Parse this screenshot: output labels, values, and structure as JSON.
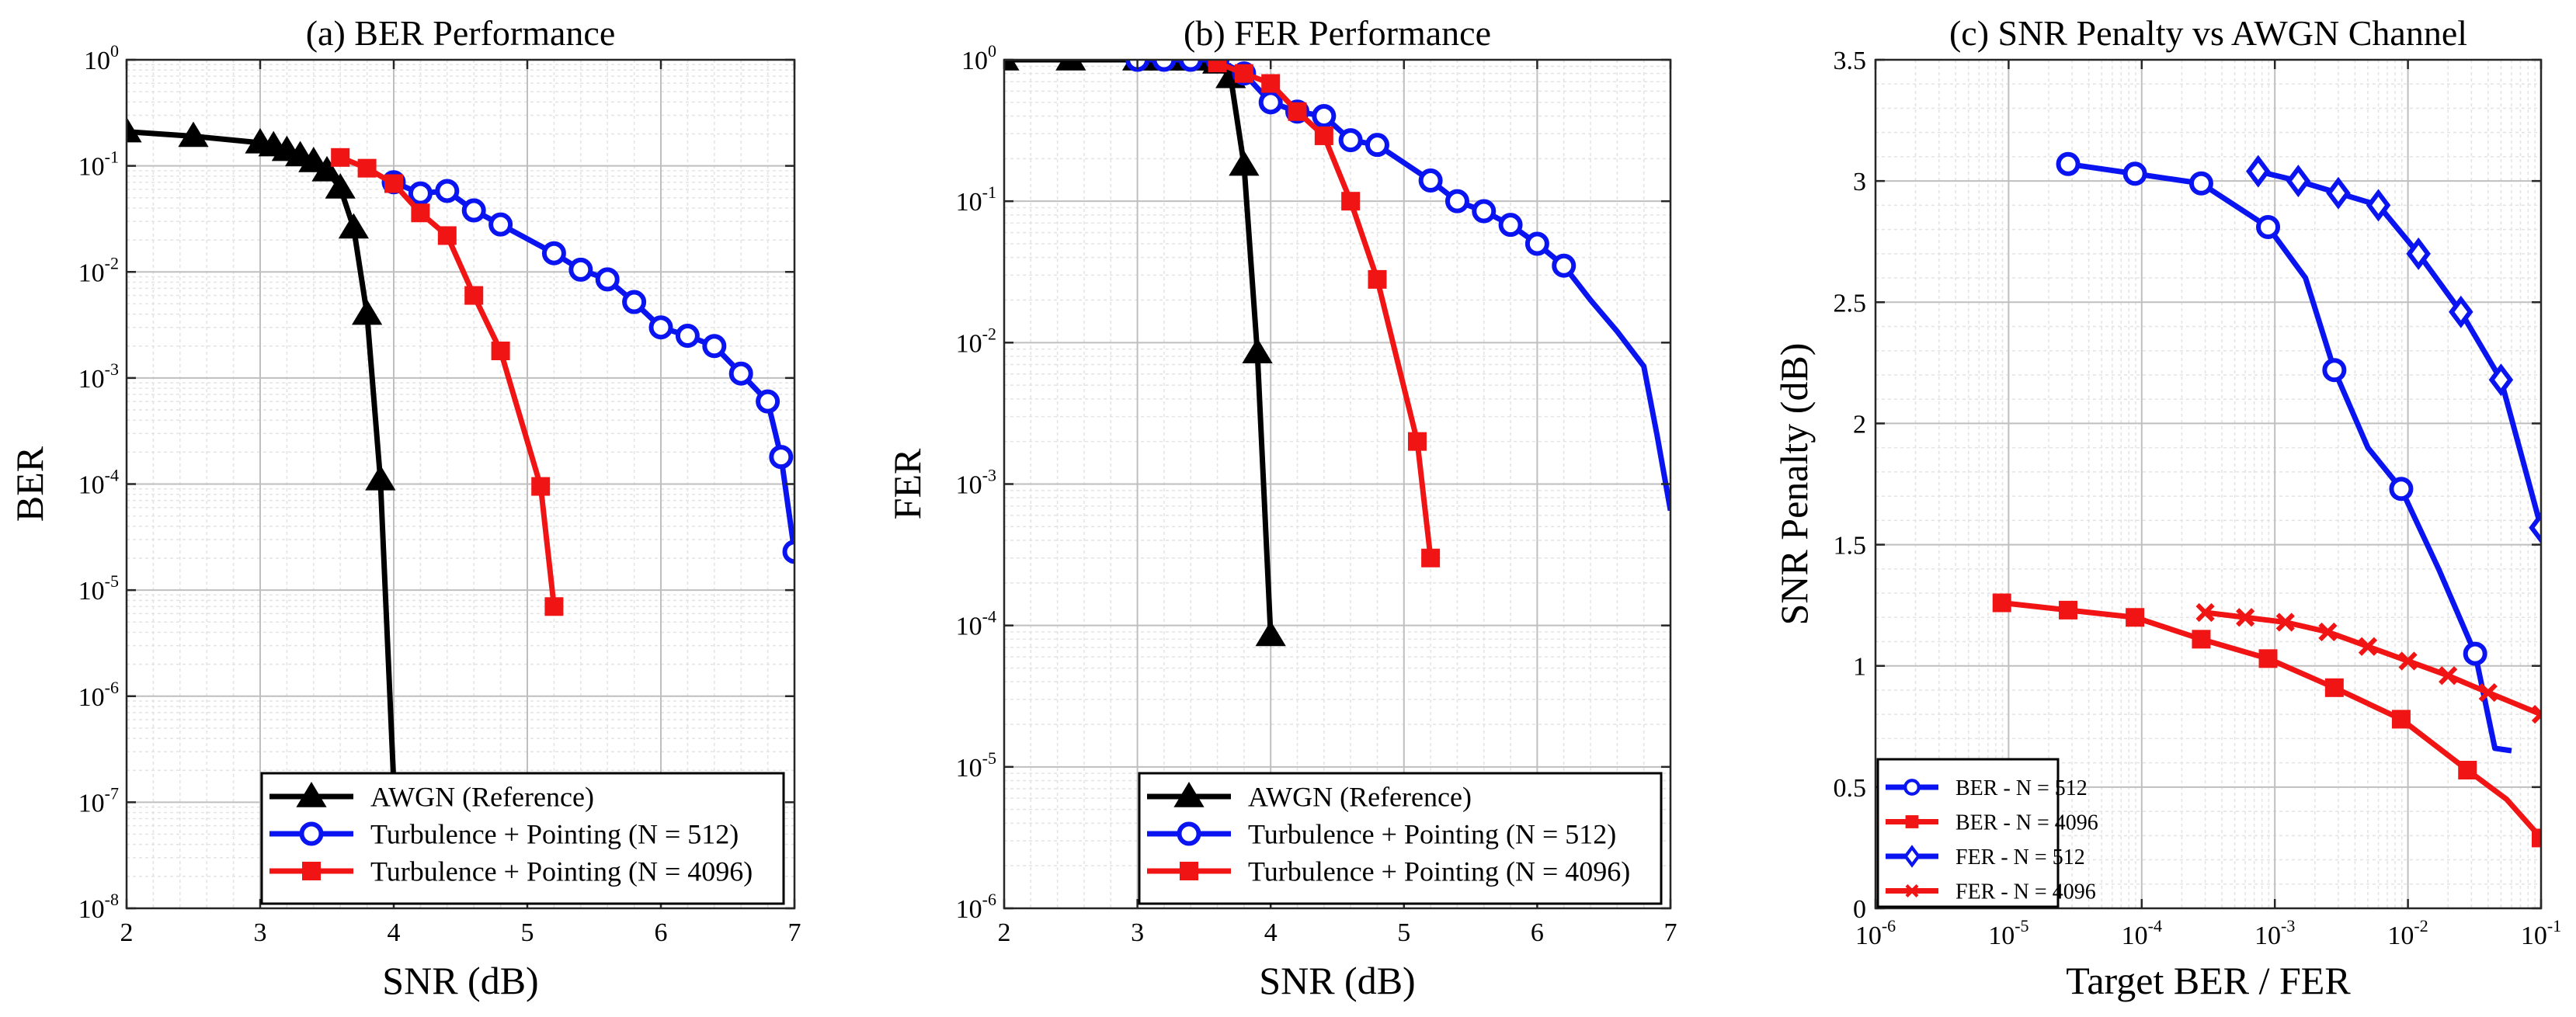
{
  "figure": {
    "colors": {
      "black": "#000000",
      "blue": "#0a14f0",
      "red": "#f01414",
      "grid_major": "#bfbfbf",
      "grid_minor": "#e3e3e3"
    }
  },
  "chart_data": [
    {
      "type": "line",
      "title": "(a) BER Performance",
      "xlabel": "SNR (dB)",
      "ylabel": "BER",
      "xscale": "linear",
      "yscale": "log",
      "xlim": [
        2,
        7
      ],
      "ylim": [
        1e-08,
        1
      ],
      "xticks": [
        2,
        3,
        4,
        5,
        6,
        7
      ],
      "xtick_labels": [
        "2",
        "3",
        "4",
        "5",
        "6",
        "7"
      ],
      "yticks": [
        {
          "base": "10",
          "exp": "-8"
        },
        {
          "base": "10",
          "exp": "-7"
        },
        {
          "base": "10",
          "exp": "-6"
        },
        {
          "base": "10",
          "exp": "-5"
        },
        {
          "base": "10",
          "exp": "-4"
        },
        {
          "base": "10",
          "exp": "-3"
        },
        {
          "base": "10",
          "exp": "-2"
        },
        {
          "base": "10",
          "exp": "-1"
        },
        {
          "base": "10",
          "exp": "0"
        }
      ],
      "legend_position": "bottom-right",
      "series": [
        {
          "name": "AWGN (Reference)",
          "color": "#000000",
          "marker": "triangle",
          "x": [
            2.0,
            2.5,
            3.0,
            3.1,
            3.2,
            3.3,
            3.4,
            3.5,
            3.6,
            3.7,
            3.8,
            3.9,
            4.0
          ],
          "y": [
            0.21,
            0.19,
            0.165,
            0.155,
            0.14,
            0.125,
            0.11,
            0.09,
            0.062,
            0.026,
            0.004,
            0.00011,
            1.5e-07
          ],
          "marker_count": 12
        },
        {
          "name": "Turbulence + Pointing (N = 512)",
          "color": "#0a14f0",
          "marker": "circle",
          "x": [
            4.0,
            4.2,
            4.4,
            4.6,
            4.8,
            5.2,
            5.4,
            5.6,
            5.8,
            6.0,
            6.2,
            6.4,
            6.6,
            6.8,
            6.9,
            7.0
          ],
          "y": [
            0.07,
            0.055,
            0.058,
            0.038,
            0.028,
            0.015,
            0.0105,
            0.0085,
            0.0052,
            0.003,
            0.0025,
            0.002,
            0.0011,
            0.0006,
            0.00018,
            2.3e-05
          ],
          "marker_count": 16
        },
        {
          "name": "Turbulence + Pointing (N = 4096)",
          "color": "#f01414",
          "marker": "square",
          "x": [
            3.6,
            3.8,
            4.0,
            4.2,
            4.4,
            4.6,
            4.8,
            5.1,
            5.2
          ],
          "y": [
            0.12,
            0.095,
            0.068,
            0.036,
            0.022,
            0.006,
            0.0018,
            9.5e-05,
            7e-06
          ],
          "marker_count": 9
        }
      ]
    },
    {
      "type": "line",
      "title": "(b) FER Performance",
      "xlabel": "SNR (dB)",
      "ylabel": "FER",
      "xscale": "linear",
      "yscale": "log",
      "xlim": [
        2,
        7
      ],
      "ylim": [
        1e-06,
        1
      ],
      "xticks": [
        2,
        3,
        4,
        5,
        6,
        7
      ],
      "xtick_labels": [
        "2",
        "3",
        "4",
        "5",
        "6",
        "7"
      ],
      "yticks": [
        {
          "base": "10",
          "exp": "-6"
        },
        {
          "base": "10",
          "exp": "-5"
        },
        {
          "base": "10",
          "exp": "-4"
        },
        {
          "base": "10",
          "exp": "-3"
        },
        {
          "base": "10",
          "exp": "-2"
        },
        {
          "base": "10",
          "exp": "-1"
        },
        {
          "base": "10",
          "exp": "0"
        }
      ],
      "legend_position": "bottom-right",
      "series": [
        {
          "name": "AWGN (Reference)",
          "color": "#000000",
          "marker": "triangle",
          "x": [
            2.0,
            2.5,
            3.0,
            3.1,
            3.2,
            3.3,
            3.4,
            3.5,
            3.6,
            3.7,
            3.8,
            3.9,
            4.0
          ],
          "y": [
            1.0,
            1.0,
            1.0,
            1.0,
            1.0,
            1.0,
            1.0,
            1.0,
            0.95,
            0.75,
            0.18,
            0.0085,
            8.5e-05
          ],
          "marker_count": 13
        },
        {
          "name": "Turbulence + Pointing (N = 512)",
          "color": "#0a14f0",
          "marker": "circle",
          "x": [
            3.0,
            3.2,
            3.4,
            3.6,
            3.8,
            4.0,
            4.2,
            4.4,
            4.6,
            4.8,
            5.2,
            5.4,
            5.6,
            5.8,
            6.0,
            6.2,
            6.4,
            6.6,
            6.8,
            6.9,
            7.0
          ],
          "y": [
            1.0,
            1.0,
            1.0,
            1.0,
            0.8,
            0.5,
            0.43,
            0.4,
            0.27,
            0.25,
            0.14,
            0.1,
            0.085,
            0.068,
            0.05,
            0.035,
            0.02,
            0.012,
            0.0068,
            0.0022,
            0.00065
          ],
          "marker_count": 16
        },
        {
          "name": "Turbulence + Pointing (N = 4096)",
          "color": "#f01414",
          "marker": "square",
          "x": [
            3.6,
            3.8,
            4.0,
            4.2,
            4.4,
            4.6,
            4.8,
            5.1,
            5.2
          ],
          "y": [
            0.95,
            0.8,
            0.68,
            0.43,
            0.29,
            0.1,
            0.028,
            0.002,
            0.0003
          ],
          "marker_count": 9
        }
      ]
    },
    {
      "type": "line",
      "title": "(c) SNR Penalty vs AWGN Channel",
      "xlabel": "Target BER / FER",
      "ylabel": "SNR Penalty (dB)",
      "xscale": "log",
      "yscale": "linear",
      "xlim": [
        1e-06,
        0.1
      ],
      "ylim": [
        0,
        3.5
      ],
      "xticks": [
        {
          "base": "10",
          "exp": "-6"
        },
        {
          "base": "10",
          "exp": "-5"
        },
        {
          "base": "10",
          "exp": "-4"
        },
        {
          "base": "10",
          "exp": "-3"
        },
        {
          "base": "10",
          "exp": "-2"
        },
        {
          "base": "10",
          "exp": "-1"
        }
      ],
      "yticks": [
        "0",
        "0.5",
        "1",
        "1.5",
        "2",
        "2.5",
        "3",
        "3.5"
      ],
      "legend_position": "bottom-left",
      "series": [
        {
          "name": "BER - N = 512",
          "color": "#0a14f0",
          "marker": "circle",
          "x": [
            2.8e-05,
            8.9e-05,
            0.00028,
            0.00089,
            0.0017,
            0.0028,
            0.005,
            0.0089,
            0.017,
            0.032,
            0.045,
            0.06
          ],
          "y": [
            3.07,
            3.03,
            2.99,
            2.81,
            2.6,
            2.22,
            1.9,
            1.73,
            1.4,
            1.05,
            0.66,
            0.65
          ],
          "markers": [
            true,
            true,
            true,
            true,
            false,
            true,
            false,
            true,
            false,
            true,
            false,
            false
          ]
        },
        {
          "name": "BER - N = 4096",
          "color": "#f01414",
          "marker": "square",
          "x": [
            8.9e-06,
            2.8e-05,
            8.9e-05,
            0.00028,
            0.00089,
            0.0028,
            0.0089,
            0.028,
            0.055,
            0.1
          ],
          "y": [
            1.26,
            1.23,
            1.2,
            1.11,
            1.03,
            0.91,
            0.78,
            0.57,
            0.45,
            0.29
          ],
          "markers": [
            true,
            true,
            true,
            true,
            true,
            true,
            true,
            true,
            false,
            true
          ]
        },
        {
          "name": "FER - N = 512",
          "color": "#0a14f0",
          "marker": "diamond",
          "x": [
            0.00075,
            0.0015,
            0.003,
            0.006,
            0.012,
            0.025,
            0.05,
            0.1
          ],
          "y": [
            3.04,
            3.0,
            2.95,
            2.9,
            2.7,
            2.46,
            2.18,
            1.57
          ],
          "markers": [
            true,
            true,
            true,
            true,
            true,
            true,
            true,
            true
          ]
        },
        {
          "name": "FER - N = 4096",
          "color": "#f01414",
          "marker": "x",
          "x": [
            0.0003,
            0.0006,
            0.0012,
            0.0025,
            0.005,
            0.01,
            0.02,
            0.04,
            0.1
          ],
          "y": [
            1.22,
            1.2,
            1.18,
            1.14,
            1.08,
            1.02,
            0.96,
            0.89,
            0.8
          ],
          "markers": [
            true,
            true,
            true,
            true,
            true,
            true,
            true,
            true,
            true
          ]
        }
      ]
    }
  ]
}
